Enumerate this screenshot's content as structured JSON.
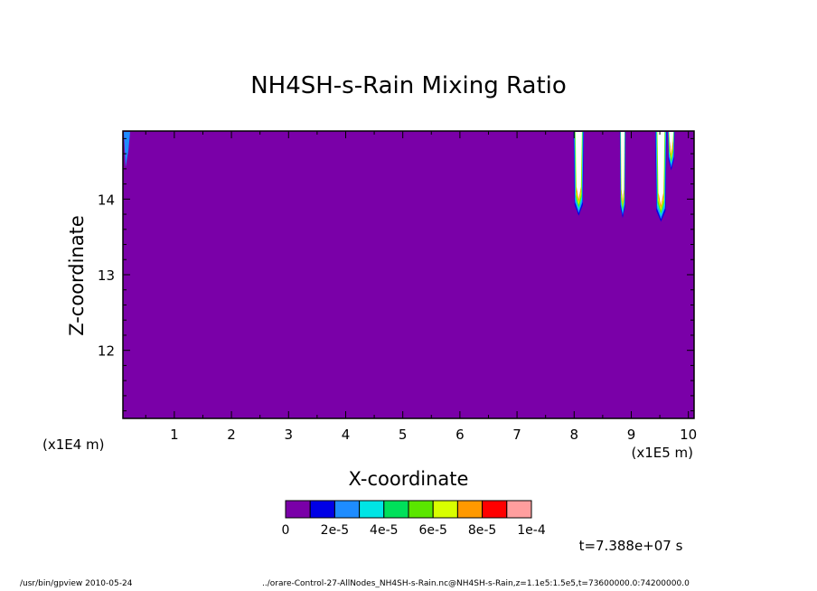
{
  "chart_data": {
    "type": "heatmap",
    "title": "NH4SH-s-Rain Mixing Ratio",
    "xlabel": "X-coordinate",
    "ylabel": "Z-coordinate",
    "x_scale_label": "(x1E5 m)",
    "y_scale_label": "(x1E4 m)",
    "xlim": [
      0.1,
      10.1
    ],
    "ylim": [
      11.1,
      14.9
    ],
    "xticks": [
      1,
      2,
      3,
      4,
      5,
      6,
      7,
      8,
      9,
      10
    ],
    "yticks": [
      12,
      13,
      14
    ],
    "colorbar": {
      "levels": [
        0,
        1e-05,
        2e-05,
        3e-05,
        4e-05,
        5e-05,
        6e-05,
        7e-05,
        8e-05,
        9e-05,
        0.0001
      ],
      "colors": [
        "#7a00a8",
        "#0000e6",
        "#1e8cff",
        "#00e5e5",
        "#00e05a",
        "#5ae600",
        "#d8ff00",
        "#ff9900",
        "#ff0000",
        "#ff9e9e"
      ],
      "tick_labels": [
        "0",
        "2e-5",
        "4e-5",
        "6e-5",
        "8e-5",
        "1e-4"
      ]
    },
    "background_value": 0,
    "plumes": [
      {
        "x": 8.08,
        "z_bottom": 13.78,
        "half_width": 0.09
      },
      {
        "x": 8.85,
        "z_bottom": 13.75,
        "half_width": 0.05
      },
      {
        "x": 9.52,
        "z_bottom": 13.7,
        "half_width": 0.1
      },
      {
        "x": 9.7,
        "z_bottom": 14.38,
        "half_width": 0.06
      }
    ],
    "time_label": "t=7.388e+07 s"
  },
  "footer": {
    "left": "/usr/bin/gpview  2010-05-24",
    "right": "../orare-Control-27-AllNodes_NH4SH-s-Rain.nc@NH4SH-s-Rain,z=1.1e5:1.5e5,t=73600000.0:74200000.0"
  }
}
